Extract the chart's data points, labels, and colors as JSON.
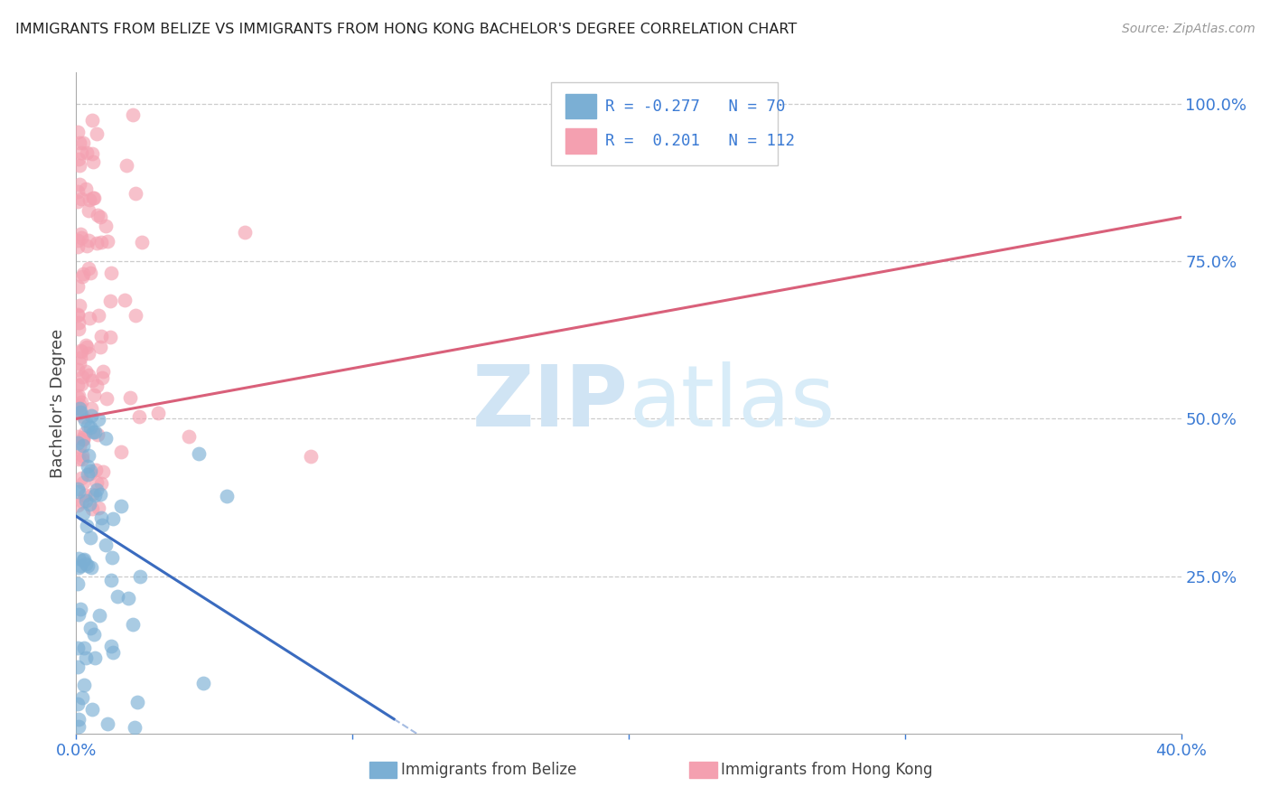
{
  "title": "IMMIGRANTS FROM BELIZE VS IMMIGRANTS FROM HONG KONG BACHELOR'S DEGREE CORRELATION CHART",
  "source": "Source: ZipAtlas.com",
  "ylabel": "Bachelor's Degree",
  "belize_color": "#7bafd4",
  "hk_color": "#f4a0b0",
  "belize_line_color": "#3a6bbf",
  "hk_line_color": "#d9607a",
  "watermark_zip": "ZIP",
  "watermark_atlas": "atlas",
  "watermark_color": "#d0e4f4",
  "xlim": [
    0.0,
    0.4
  ],
  "ylim": [
    0.0,
    1.05
  ],
  "yticks": [
    0.0,
    0.25,
    0.5,
    0.75,
    1.0
  ],
  "ytick_labels": [
    "",
    "25.0%",
    "50.0%",
    "75.0%",
    "100.0%"
  ],
  "xtick_labels": [
    "0.0%",
    "",
    "",
    "",
    "40.0%"
  ],
  "legend_text_r1": "R = -0.277",
  "legend_text_n1": "N = 70",
  "legend_text_r2": "R =  0.201",
  "legend_text_n2": "N = 112",
  "bottom_label1": "Immigrants from Belize",
  "bottom_label2": "Immigrants from Hong Kong",
  "hk_line_y0": 0.5,
  "hk_line_y1": 0.82,
  "bz_line_y0": 0.345,
  "bz_line_slope": -2.8
}
